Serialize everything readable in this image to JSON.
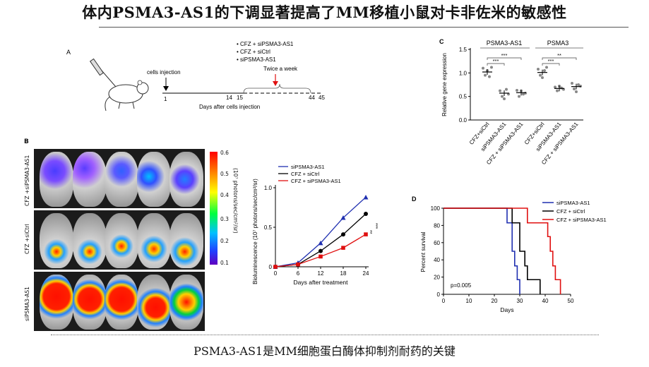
{
  "title": "体内PSMA3-AS1的下调显著提高了MM移植小鼠对卡非佐米的敏感性",
  "caption": "PSMA3-AS1是MM细胞蛋白酶体抑制剂耐药的关键",
  "panelA": {
    "letter": "A",
    "cells_injection": "cells injection",
    "legend": [
      "• CFZ + siPSMA3-AS1",
      "• CFZ + siCtrl",
      "• siPSMA3-AS1"
    ],
    "twice": "Twice a week",
    "ticks": [
      "1",
      "14",
      "15",
      "44",
      "45"
    ],
    "xlabel": "Days after cells injection"
  },
  "panelB": {
    "letter": "B",
    "row_labels": [
      "CFZ +siPSMA3-AS1",
      "CFZ +siCtrl",
      "siPSMA3-AS1"
    ],
    "colorbar_ticks": [
      "0.6",
      "0.5",
      "0.4",
      "0.3",
      "0.2",
      "0.1"
    ],
    "colorbar_label": "(10⁷ photons/sec/cm²/sr)",
    "row_intensity": [
      "low",
      "medium",
      "high"
    ]
  },
  "chart_data": [
    {
      "type": "line",
      "title": "",
      "xlabel": "Days after treatment",
      "ylabel": "Bioluminescence (10⁷ photons/sec/cm²/sr)",
      "x": [
        0,
        6,
        12,
        18,
        24
      ],
      "xlim": [
        0,
        24
      ],
      "ylim": [
        0,
        1.0
      ],
      "yticks": [
        "0",
        "0.5",
        "1.0"
      ],
      "xticks": [
        "0",
        "6",
        "12",
        "18",
        "24"
      ],
      "series": [
        {
          "name": "siPSMA3-AS1",
          "color": "#1f2fb0",
          "marker": "triangle",
          "values": [
            0.0,
            0.05,
            0.3,
            0.62,
            0.88
          ]
        },
        {
          "name": "CFZ + siCtrl",
          "color": "#000000",
          "marker": "circle",
          "values": [
            0.0,
            0.03,
            0.2,
            0.41,
            0.67
          ]
        },
        {
          "name": "CFZ + siPSMA3-AS1",
          "color": "#e01010",
          "marker": "square",
          "values": [
            0.0,
            0.03,
            0.13,
            0.24,
            0.41
          ]
        }
      ],
      "significance": [
        "***",
        "**"
      ],
      "legend": "top-left"
    },
    {
      "type": "scatter",
      "ylabel": "Relative gene expression",
      "ylim": [
        0,
        1.5
      ],
      "yticks": [
        "0.0",
        "0.5",
        "1.0",
        "1.5"
      ],
      "groups": [
        "PSMA3-AS1",
        "PSMA3"
      ],
      "categories": [
        "CFZ+siCtrl",
        "siPSMA3-AS1",
        "CFZ + siPSMA3-AS1",
        "CFZ+siCtrl",
        "siPSMA3-AS1",
        "CFZ + siPSMA3-AS1"
      ],
      "means": [
        1.02,
        0.57,
        0.58,
        1.01,
        0.67,
        0.71
      ],
      "points": [
        [
          1.1,
          0.95,
          1.05,
          0.92,
          1.12
        ],
        [
          0.62,
          0.5,
          0.45,
          0.65,
          0.55
        ],
        [
          0.63,
          0.5,
          0.62,
          0.55,
          0.57
        ],
        [
          1.08,
          0.95,
          0.9,
          1.05,
          1.12
        ],
        [
          0.7,
          0.62,
          0.72,
          0.68,
          0.65
        ],
        [
          0.78,
          0.66,
          0.6,
          0.75,
          0.72
        ]
      ],
      "significance": [
        "***",
        "***",
        "***",
        "**"
      ]
    },
    {
      "type": "line",
      "xlabel": "Days",
      "ylabel": "Percent survival",
      "xlim": [
        0,
        50
      ],
      "ylim": [
        0,
        100
      ],
      "xticks": [
        "0",
        "10",
        "20",
        "30",
        "40",
        "50"
      ],
      "yticks": [
        "0",
        "20",
        "40",
        "60",
        "80",
        "100"
      ],
      "annotation": "p=0.005",
      "series": [
        {
          "name": "siPSMA3-AS1",
          "color": "#1f2fb0",
          "steps": [
            [
              0,
              100
            ],
            [
              25,
              100
            ],
            [
              25,
              83
            ],
            [
              27,
              83
            ],
            [
              27,
              50
            ],
            [
              28,
              50
            ],
            [
              28,
              33
            ],
            [
              29,
              33
            ],
            [
              29,
              17
            ],
            [
              30,
              17
            ],
            [
              30,
              0
            ]
          ]
        },
        {
          "name": "CFZ + siCtrl",
          "color": "#000000",
          "steps": [
            [
              0,
              100
            ],
            [
              27,
              100
            ],
            [
              27,
              83
            ],
            [
              30,
              83
            ],
            [
              30,
              50
            ],
            [
              32,
              50
            ],
            [
              32,
              33
            ],
            [
              33,
              33
            ],
            [
              33,
              17
            ],
            [
              38,
              17
            ],
            [
              38,
              0
            ]
          ]
        },
        {
          "name": "CFZ + siPSMA3-AS1",
          "color": "#e01010",
          "steps": [
            [
              0,
              100
            ],
            [
              33,
              100
            ],
            [
              33,
              83
            ],
            [
              41,
              83
            ],
            [
              41,
              67
            ],
            [
              42,
              67
            ],
            [
              42,
              50
            ],
            [
              43,
              50
            ],
            [
              43,
              33
            ],
            [
              44,
              33
            ],
            [
              44,
              17
            ],
            [
              46,
              17
            ],
            [
              46,
              0
            ]
          ]
        }
      ],
      "legend": "top-right"
    }
  ]
}
